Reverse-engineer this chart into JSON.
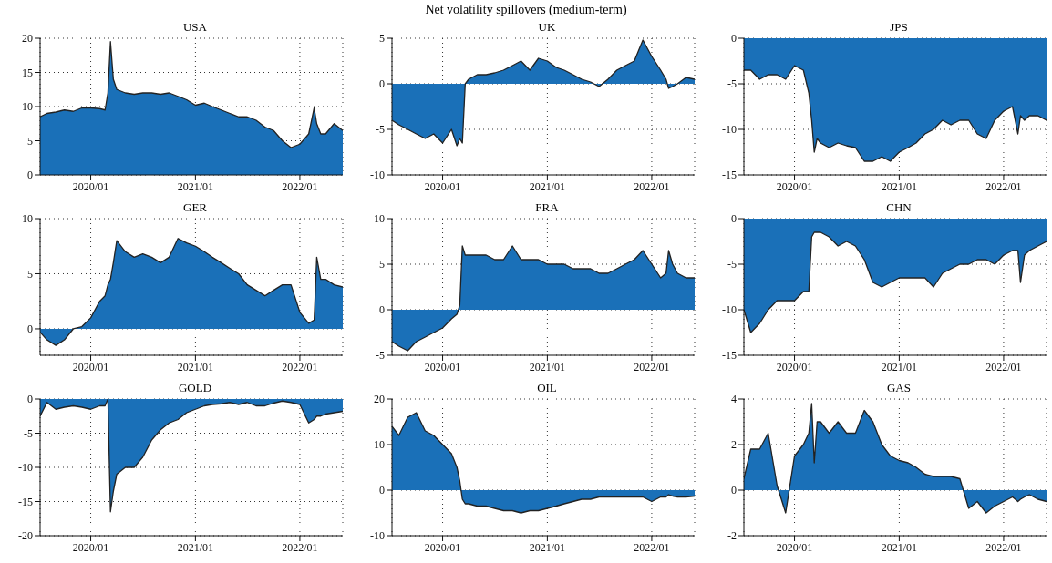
{
  "chart_data": [
    {
      "type": "area",
      "title": "USA",
      "annotations": [
        "Net volatility spillovers (medium-term)"
      ],
      "grid": true,
      "xlim": [
        "2019-07-08",
        "2022-05-31"
      ],
      "xticks": [
        {
          "value": "2020-01",
          "label": "2020/01"
        },
        {
          "value": "2021-01",
          "label": "2021/01"
        },
        {
          "value": "2022-01",
          "label": "2022/01"
        }
      ],
      "ylim": [
        0,
        20
      ],
      "yticks": [
        0,
        5,
        10,
        15,
        20
      ],
      "x": [
        "2019-07-08",
        "2019-08-01",
        "2019-09-01",
        "2019-10-01",
        "2019-11-01",
        "2019-12-01",
        "2020-01-01",
        "2020-02-01",
        "2020-02-20",
        "2020-03-01",
        "2020-03-10",
        "2020-03-20",
        "2020-04-01",
        "2020-05-01",
        "2020-06-01",
        "2020-07-01",
        "2020-08-01",
        "2020-09-01",
        "2020-10-01",
        "2020-11-01",
        "2020-12-01",
        "2021-01-01",
        "2021-02-01",
        "2021-03-01",
        "2021-04-01",
        "2021-05-01",
        "2021-06-01",
        "2021-07-01",
        "2021-08-01",
        "2021-09-01",
        "2021-10-01",
        "2021-11-01",
        "2021-12-01",
        "2022-01-01",
        "2022-02-01",
        "2022-02-20",
        "2022-03-01",
        "2022-03-15",
        "2022-04-01",
        "2022-05-01",
        "2022-05-31"
      ],
      "series": [
        {
          "color": "#1a70b8",
          "values": [
            8.5,
            9,
            9.2,
            9.5,
            9.3,
            9.8,
            9.8,
            9.7,
            9.5,
            12,
            19.5,
            14,
            12.5,
            12,
            11.8,
            12,
            12,
            11.8,
            12,
            11.5,
            11,
            10.2,
            10.5,
            10,
            9.5,
            9,
            8.5,
            8.5,
            8,
            7,
            6.5,
            5,
            4,
            4.5,
            6,
            9.8,
            7.5,
            6,
            6,
            7.5,
            6.5
          ]
        }
      ]
    },
    {
      "type": "area",
      "title": "UK",
      "grid": true,
      "xlim": [
        "2019-07-08",
        "2022-05-31"
      ],
      "xticks": [
        {
          "value": "2020-01",
          "label": "2020/01"
        },
        {
          "value": "2021-01",
          "label": "2021/01"
        },
        {
          "value": "2022-01",
          "label": "2022/01"
        }
      ],
      "ylim": [
        -10,
        5
      ],
      "yticks": [
        -10,
        -5,
        0,
        5
      ],
      "x": [
        "2019-07-08",
        "2019-08-01",
        "2019-09-01",
        "2019-10-01",
        "2019-11-01",
        "2019-12-01",
        "2020-01-01",
        "2020-02-01",
        "2020-02-20",
        "2020-03-01",
        "2020-03-10",
        "2020-03-20",
        "2020-04-01",
        "2020-05-01",
        "2020-06-01",
        "2020-07-01",
        "2020-08-01",
        "2020-09-01",
        "2020-10-01",
        "2020-11-01",
        "2020-12-01",
        "2021-01-01",
        "2021-02-01",
        "2021-03-01",
        "2021-04-01",
        "2021-05-01",
        "2021-06-01",
        "2021-07-01",
        "2021-08-01",
        "2021-09-01",
        "2021-10-01",
        "2021-11-01",
        "2021-12-01",
        "2022-01-01",
        "2022-02-01",
        "2022-02-20",
        "2022-03-01",
        "2022-03-15",
        "2022-04-01",
        "2022-05-01",
        "2022-05-31"
      ],
      "series": [
        {
          "color": "#1a70b8",
          "values": [
            -4,
            -4.5,
            -5,
            -5.5,
            -6,
            -5.5,
            -6.5,
            -5,
            -6.8,
            -6,
            -6.5,
            0,
            0.5,
            1,
            1,
            1.2,
            1.5,
            2,
            2.5,
            1.5,
            2.8,
            2.5,
            1.8,
            1.5,
            1,
            0.5,
            0.2,
            -0.3,
            0.5,
            1.5,
            2,
            2.5,
            4.8,
            3,
            1.5,
            0.5,
            -0.5,
            -0.3,
            0,
            0.7,
            0.5
          ]
        }
      ]
    },
    {
      "type": "area",
      "title": "JPS",
      "grid": true,
      "xlim": [
        "2019-07-08",
        "2022-05-31"
      ],
      "xticks": [
        {
          "value": "2020-01",
          "label": "2020/01"
        },
        {
          "value": "2021-01",
          "label": "2021/01"
        },
        {
          "value": "2022-01",
          "label": "2022/01"
        }
      ],
      "ylim": [
        -15,
        0
      ],
      "yticks": [
        -15,
        -10,
        -5,
        0
      ],
      "x": [
        "2019-07-08",
        "2019-08-01",
        "2019-09-01",
        "2019-10-01",
        "2019-11-01",
        "2019-12-01",
        "2020-01-01",
        "2020-02-01",
        "2020-02-20",
        "2020-03-01",
        "2020-03-10",
        "2020-03-20",
        "2020-04-01",
        "2020-05-01",
        "2020-06-01",
        "2020-07-01",
        "2020-08-01",
        "2020-09-01",
        "2020-10-01",
        "2020-11-01",
        "2020-12-01",
        "2021-01-01",
        "2021-02-01",
        "2021-03-01",
        "2021-04-01",
        "2021-05-01",
        "2021-06-01",
        "2021-07-01",
        "2021-08-01",
        "2021-09-01",
        "2021-10-01",
        "2021-11-01",
        "2021-12-01",
        "2022-01-01",
        "2022-02-01",
        "2022-02-20",
        "2022-03-01",
        "2022-03-15",
        "2022-04-01",
        "2022-05-01",
        "2022-05-31"
      ],
      "series": [
        {
          "color": "#1a70b8",
          "values": [
            -3.5,
            -3.5,
            -4.5,
            -4,
            -4,
            -4.5,
            -3,
            -3.5,
            -6,
            -9,
            -12.5,
            -11,
            -11.5,
            -12,
            -11.5,
            -11.8,
            -12,
            -13.5,
            -13.5,
            -13,
            -13.5,
            -12.5,
            -12,
            -11.5,
            -10.5,
            -10,
            -9,
            -9.5,
            -9,
            -9,
            -10.5,
            -11,
            -9,
            -8,
            -7.5,
            -10.5,
            -8.5,
            -9,
            -8.5,
            -8.5,
            -9
          ]
        }
      ]
    },
    {
      "type": "area",
      "title": "GER",
      "grid": true,
      "xlim": [
        "2019-07-08",
        "2022-05-31"
      ],
      "xticks": [
        {
          "value": "2020-01",
          "label": "2020/01"
        },
        {
          "value": "2021-01",
          "label": "2021/01"
        },
        {
          "value": "2022-01",
          "label": "2022/01"
        }
      ],
      "ylim": [
        -2.4,
        10
      ],
      "yticks": [
        0,
        5,
        10
      ],
      "x": [
        "2019-07-08",
        "2019-08-01",
        "2019-09-01",
        "2019-10-01",
        "2019-11-01",
        "2019-12-01",
        "2020-01-01",
        "2020-02-01",
        "2020-02-20",
        "2020-03-01",
        "2020-03-10",
        "2020-03-20",
        "2020-04-01",
        "2020-05-01",
        "2020-06-01",
        "2020-07-01",
        "2020-08-01",
        "2020-09-01",
        "2020-10-01",
        "2020-11-01",
        "2020-12-01",
        "2021-01-01",
        "2021-02-01",
        "2021-03-01",
        "2021-04-01",
        "2021-05-01",
        "2021-06-01",
        "2021-07-01",
        "2021-08-01",
        "2021-09-01",
        "2021-10-01",
        "2021-11-01",
        "2021-12-01",
        "2022-01-01",
        "2022-02-01",
        "2022-02-20",
        "2022-03-01",
        "2022-03-15",
        "2022-04-01",
        "2022-05-01",
        "2022-05-31"
      ],
      "series": [
        {
          "color": "#1a70b8",
          "values": [
            -0.3,
            -1,
            -1.5,
            -1,
            0,
            0.2,
            1,
            2.5,
            3,
            4,
            4.5,
            6,
            8,
            7,
            6.5,
            6.8,
            6.5,
            6,
            6.5,
            8.2,
            7.8,
            7.5,
            7,
            6.5,
            6,
            5.5,
            5,
            4,
            3.5,
            3,
            3.5,
            4,
            4,
            1.5,
            0.5,
            0.8,
            6.5,
            4.5,
            4.5,
            4,
            3.8
          ]
        }
      ]
    },
    {
      "type": "area",
      "title": "FRA",
      "grid": true,
      "xlim": [
        "2019-07-08",
        "2022-05-31"
      ],
      "xticks": [
        {
          "value": "2020-01",
          "label": "2020/01"
        },
        {
          "value": "2021-01",
          "label": "2021/01"
        },
        {
          "value": "2022-01",
          "label": "2022/01"
        }
      ],
      "ylim": [
        -5,
        10
      ],
      "yticks": [
        -5,
        0,
        5,
        10
      ],
      "x": [
        "2019-07-08",
        "2019-08-01",
        "2019-09-01",
        "2019-10-01",
        "2019-11-01",
        "2019-12-01",
        "2020-01-01",
        "2020-02-01",
        "2020-02-20",
        "2020-03-01",
        "2020-03-10",
        "2020-03-20",
        "2020-04-01",
        "2020-05-01",
        "2020-06-01",
        "2020-07-01",
        "2020-08-01",
        "2020-09-01",
        "2020-10-01",
        "2020-11-01",
        "2020-12-01",
        "2021-01-01",
        "2021-02-01",
        "2021-03-01",
        "2021-04-01",
        "2021-05-01",
        "2021-06-01",
        "2021-07-01",
        "2021-08-01",
        "2021-09-01",
        "2021-10-01",
        "2021-11-01",
        "2021-12-01",
        "2022-01-01",
        "2022-02-01",
        "2022-02-20",
        "2022-03-01",
        "2022-03-15",
        "2022-04-01",
        "2022-05-01",
        "2022-05-31"
      ],
      "series": [
        {
          "color": "#1a70b8",
          "values": [
            -3.5,
            -4,
            -4.5,
            -3.5,
            -3,
            -2.5,
            -2,
            -1,
            -0.5,
            0.5,
            7,
            6,
            6,
            6,
            6,
            5.5,
            5.5,
            7,
            5.5,
            5.5,
            5.5,
            5,
            5,
            5,
            4.5,
            4.5,
            4.5,
            4,
            4,
            4.5,
            5,
            5.5,
            6.5,
            5,
            3.5,
            4,
            6.5,
            5,
            4,
            3.5,
            3.5
          ]
        }
      ]
    },
    {
      "type": "area",
      "title": "CHN",
      "grid": true,
      "xlim": [
        "2019-07-08",
        "2022-05-31"
      ],
      "xticks": [
        {
          "value": "2020-01",
          "label": "2020/01"
        },
        {
          "value": "2021-01",
          "label": "2021/01"
        },
        {
          "value": "2022-01",
          "label": "2022/01"
        }
      ],
      "ylim": [
        -15,
        0
      ],
      "yticks": [
        -15,
        -10,
        -5,
        0
      ],
      "x": [
        "2019-07-08",
        "2019-08-01",
        "2019-09-01",
        "2019-10-01",
        "2019-11-01",
        "2019-12-01",
        "2020-01-01",
        "2020-02-01",
        "2020-02-20",
        "2020-03-01",
        "2020-03-10",
        "2020-03-20",
        "2020-04-01",
        "2020-05-01",
        "2020-06-01",
        "2020-07-01",
        "2020-08-01",
        "2020-09-01",
        "2020-10-01",
        "2020-11-01",
        "2020-12-01",
        "2021-01-01",
        "2021-02-01",
        "2021-03-01",
        "2021-04-01",
        "2021-05-01",
        "2021-06-01",
        "2021-07-01",
        "2021-08-01",
        "2021-09-01",
        "2021-10-01",
        "2021-11-01",
        "2021-12-01",
        "2022-01-01",
        "2022-02-01",
        "2022-02-20",
        "2022-03-01",
        "2022-03-15",
        "2022-04-01",
        "2022-05-01",
        "2022-05-31"
      ],
      "series": [
        {
          "color": "#1a70b8",
          "values": [
            -10,
            -12.5,
            -11.5,
            -10,
            -9,
            -9,
            -9,
            -8,
            -8,
            -2,
            -1.5,
            -1.5,
            -1.5,
            -2,
            -3,
            -2.5,
            -3,
            -4.5,
            -7,
            -7.5,
            -7,
            -6.5,
            -6.5,
            -6.5,
            -6.5,
            -7.5,
            -6,
            -5.5,
            -5,
            -5,
            -4.5,
            -4.5,
            -5,
            -4,
            -3.5,
            -3.5,
            -7,
            -4,
            -3.5,
            -3,
            -2.5
          ]
        }
      ]
    },
    {
      "type": "area",
      "title": "GOLD",
      "grid": true,
      "xlim": [
        "2019-07-08",
        "2022-05-31"
      ],
      "xticks": [
        {
          "value": "2020-01",
          "label": "2020/01"
        },
        {
          "value": "2021-01",
          "label": "2021/01"
        },
        {
          "value": "2022-01",
          "label": "2022/01"
        }
      ],
      "ylim": [
        -20,
        0
      ],
      "yticks": [
        -20,
        -15,
        -10,
        -5,
        0
      ],
      "x": [
        "2019-07-08",
        "2019-08-01",
        "2019-09-01",
        "2019-10-01",
        "2019-11-01",
        "2019-12-01",
        "2020-01-01",
        "2020-02-01",
        "2020-02-20",
        "2020-03-01",
        "2020-03-10",
        "2020-03-20",
        "2020-04-01",
        "2020-05-01",
        "2020-06-01",
        "2020-07-01",
        "2020-08-01",
        "2020-09-01",
        "2020-10-01",
        "2020-11-01",
        "2020-12-01",
        "2021-01-01",
        "2021-02-01",
        "2021-03-01",
        "2021-04-01",
        "2021-05-01",
        "2021-06-01",
        "2021-07-01",
        "2021-08-01",
        "2021-09-01",
        "2021-10-01",
        "2021-11-01",
        "2021-12-01",
        "2022-01-01",
        "2022-02-01",
        "2022-02-20",
        "2022-03-01",
        "2022-03-15",
        "2022-04-01",
        "2022-05-01",
        "2022-05-31"
      ],
      "series": [
        {
          "color": "#1a70b8",
          "values": [
            -2.5,
            -0.5,
            -1.5,
            -1.2,
            -1,
            -1.2,
            -1.5,
            -1,
            -1,
            0,
            -16.5,
            -13.5,
            -11,
            -10,
            -10,
            -8.5,
            -6,
            -4.5,
            -3.5,
            -3,
            -2,
            -1.5,
            -1,
            -0.8,
            -0.7,
            -0.5,
            -0.8,
            -0.5,
            -1,
            -1,
            -0.6,
            -0.3,
            -0.5,
            -0.8,
            -3.5,
            -3,
            -2.5,
            -2.5,
            -2.2,
            -2,
            -1.8
          ]
        }
      ]
    },
    {
      "type": "area",
      "title": "OIL",
      "grid": true,
      "xlim": [
        "2019-07-08",
        "2022-05-31"
      ],
      "xticks": [
        {
          "value": "2020-01",
          "label": "2020/01"
        },
        {
          "value": "2021-01",
          "label": "2021/01"
        },
        {
          "value": "2022-01",
          "label": "2022/01"
        }
      ],
      "ylim": [
        -10,
        20
      ],
      "yticks": [
        -10,
        0,
        10,
        20
      ],
      "x": [
        "2019-07-08",
        "2019-08-01",
        "2019-09-01",
        "2019-10-01",
        "2019-11-01",
        "2019-12-01",
        "2020-01-01",
        "2020-02-01",
        "2020-02-20",
        "2020-03-01",
        "2020-03-10",
        "2020-03-20",
        "2020-04-01",
        "2020-05-01",
        "2020-06-01",
        "2020-07-01",
        "2020-08-01",
        "2020-09-01",
        "2020-10-01",
        "2020-11-01",
        "2020-12-01",
        "2021-01-01",
        "2021-02-01",
        "2021-03-01",
        "2021-04-01",
        "2021-05-01",
        "2021-06-01",
        "2021-07-01",
        "2021-08-01",
        "2021-09-01",
        "2021-10-01",
        "2021-11-01",
        "2021-12-01",
        "2022-01-01",
        "2022-02-01",
        "2022-02-20",
        "2022-03-01",
        "2022-03-15",
        "2022-04-01",
        "2022-05-01",
        "2022-05-31"
      ],
      "series": [
        {
          "color": "#1a70b8",
          "values": [
            14,
            12,
            16,
            17,
            13,
            12,
            10,
            8,
            5,
            2,
            -2,
            -3,
            -3,
            -3.5,
            -3.5,
            -4,
            -4.5,
            -4.5,
            -5,
            -4.5,
            -4.5,
            -4,
            -3.5,
            -3,
            -2.5,
            -2,
            -2,
            -1.5,
            -1.5,
            -1.5,
            -1.5,
            -1.5,
            -1.5,
            -2.5,
            -1.5,
            -1.5,
            -1,
            -1.3,
            -1.5,
            -1.5,
            -1.3
          ]
        }
      ]
    },
    {
      "type": "area",
      "title": "GAS",
      "grid": true,
      "xlim": [
        "2019-07-08",
        "2022-05-31"
      ],
      "xticks": [
        {
          "value": "2020-01",
          "label": "2020/01"
        },
        {
          "value": "2021-01",
          "label": "2021/01"
        },
        {
          "value": "2022-01",
          "label": "2022/01"
        }
      ],
      "ylim": [
        -2,
        4
      ],
      "yticks": [
        -2,
        0,
        2,
        4
      ],
      "x": [
        "2019-07-08",
        "2019-08-01",
        "2019-09-01",
        "2019-10-01",
        "2019-11-01",
        "2019-12-01",
        "2020-01-01",
        "2020-02-01",
        "2020-02-20",
        "2020-03-01",
        "2020-03-10",
        "2020-03-20",
        "2020-04-01",
        "2020-05-01",
        "2020-06-01",
        "2020-07-01",
        "2020-08-01",
        "2020-09-01",
        "2020-10-01",
        "2020-11-01",
        "2020-12-01",
        "2021-01-01",
        "2021-02-01",
        "2021-03-01",
        "2021-04-01",
        "2021-05-01",
        "2021-06-01",
        "2021-07-01",
        "2021-08-01",
        "2021-09-01",
        "2021-10-01",
        "2021-11-01",
        "2021-12-01",
        "2022-01-01",
        "2022-02-01",
        "2022-02-20",
        "2022-03-01",
        "2022-03-15",
        "2022-04-01",
        "2022-05-01",
        "2022-05-31"
      ],
      "series": [
        {
          "color": "#1a70b8",
          "values": [
            0.5,
            1.8,
            1.8,
            2.5,
            0.2,
            -1,
            1.5,
            2,
            2.5,
            3.8,
            1.2,
            3,
            3,
            2.5,
            3,
            2.5,
            2.5,
            3.5,
            3,
            2,
            1.5,
            1.3,
            1.2,
            1,
            0.7,
            0.6,
            0.6,
            0.6,
            0.5,
            -0.8,
            -0.5,
            -1,
            -0.7,
            -0.5,
            -0.3,
            -0.5,
            -0.4,
            -0.3,
            -0.2,
            -0.4,
            -0.5
          ]
        }
      ]
    }
  ]
}
